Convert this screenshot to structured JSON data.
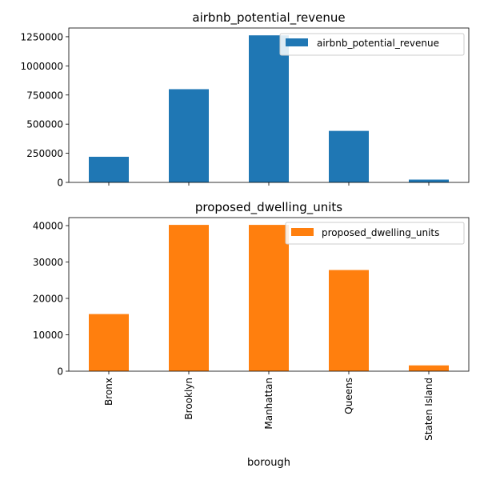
{
  "chart_data": [
    {
      "type": "bar",
      "title": "airbnb_potential_revenue",
      "categories": [
        "Bronx",
        "Brooklyn",
        "Manhattan",
        "Queens",
        "Staten Island"
      ],
      "series": [
        {
          "name": "airbnb_potential_revenue",
          "color": "#1f77b4",
          "values": [
            220000,
            800000,
            1262000,
            442000,
            24000
          ]
        }
      ],
      "yticks": [
        0,
        250000,
        500000,
        750000,
        1000000,
        1250000
      ],
      "ylim": [
        0,
        1325000
      ],
      "xlabel": "",
      "ylabel": "",
      "show_x_tick_labels": false,
      "legend": "top-right",
      "grid": false
    },
    {
      "type": "bar",
      "title": "proposed_dwelling_units",
      "categories": [
        "Bronx",
        "Brooklyn",
        "Manhattan",
        "Queens",
        "Staten Island"
      ],
      "series": [
        {
          "name": "proposed_dwelling_units",
          "color": "#ff7f0e",
          "values": [
            15700,
            40200,
            40200,
            27800,
            1600
          ]
        }
      ],
      "yticks": [
        0,
        10000,
        20000,
        30000,
        40000
      ],
      "ylim": [
        0,
        42200
      ],
      "xlabel": "borough",
      "ylabel": "",
      "show_x_tick_labels": true,
      "legend": "top-right",
      "grid": false
    }
  ]
}
